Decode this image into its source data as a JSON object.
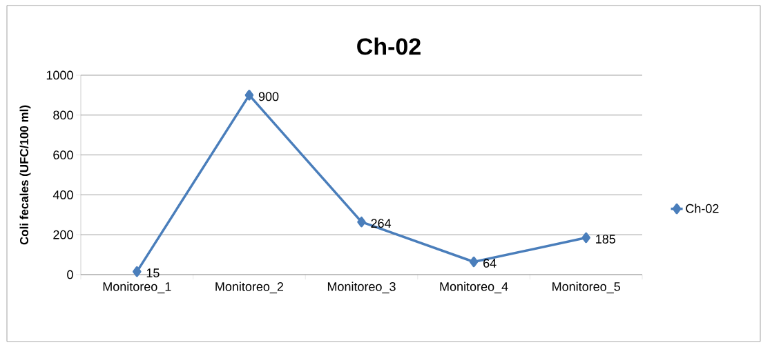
{
  "chart_data": {
    "type": "line",
    "title": "Ch-02",
    "ylabel": "Coli fecales (UFC/100 ml)",
    "categories": [
      "Monitoreo_1",
      "Monitoreo_2",
      "Monitoreo_3",
      "Monitoreo_4",
      "Monitoreo_5"
    ],
    "series": [
      {
        "name": "Ch-02",
        "color": "#4a7ebb",
        "values": [
          15,
          900,
          264,
          64,
          185
        ]
      }
    ],
    "ylim": [
      0,
      1000
    ],
    "yticks": [
      0,
      200,
      400,
      600,
      800,
      1000
    ],
    "grid": "y",
    "legend": "right",
    "marker": "diamond",
    "line_style": "solid",
    "data_labels": true
  }
}
